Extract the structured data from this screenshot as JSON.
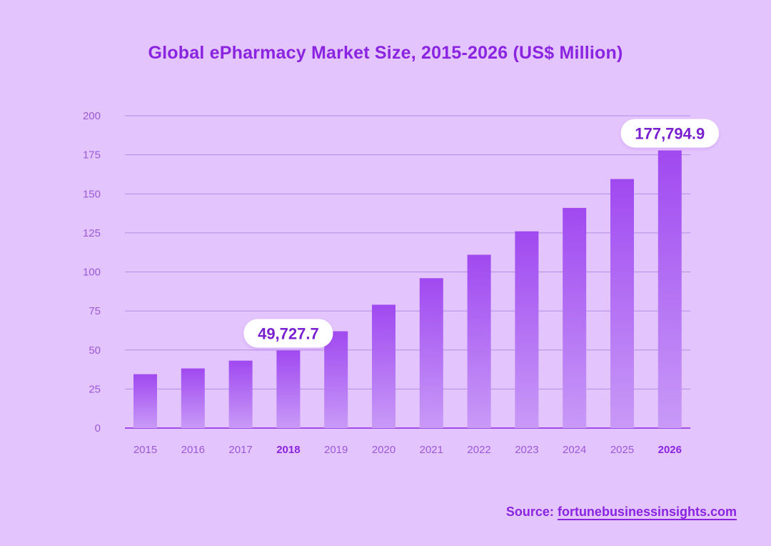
{
  "colors": {
    "background": "#e3c4fd",
    "accent": "#8a24e0",
    "bar_top": "#a049f0",
    "bar_bottom": "#c89af7",
    "grid": "#b58ce6",
    "axis_text": "#9a5ad6",
    "callout_bg": "#ffffff",
    "callout_text": "#7a1fd0"
  },
  "source": {
    "prefix": "Source:",
    "link_text": "fortunebusinessinsights.com"
  },
  "chart_data": {
    "type": "bar",
    "title": "Global ePharmacy Market Size, 2015-2026 (US$ Million)",
    "xlabel": "",
    "ylabel": "",
    "categories": [
      "2015",
      "2016",
      "2017",
      "2018",
      "2019",
      "2020",
      "2021",
      "2022",
      "2023",
      "2024",
      "2025",
      "2026"
    ],
    "values": [
      34.5,
      38.2,
      43.2,
      49.7,
      62.0,
      79.0,
      96.0,
      111.0,
      126.0,
      141.0,
      159.5,
      177.8
    ],
    "ylim": [
      0,
      200
    ],
    "yticks": [
      "0",
      "25",
      "50",
      "75",
      "100",
      "125",
      "150",
      "175",
      "200"
    ],
    "grid": true,
    "highlighted_categories": [
      "2018",
      "2026"
    ],
    "callouts": [
      {
        "category": "2018",
        "label": "49,727.7"
      },
      {
        "category": "2026",
        "label": "177,794.9"
      }
    ]
  }
}
